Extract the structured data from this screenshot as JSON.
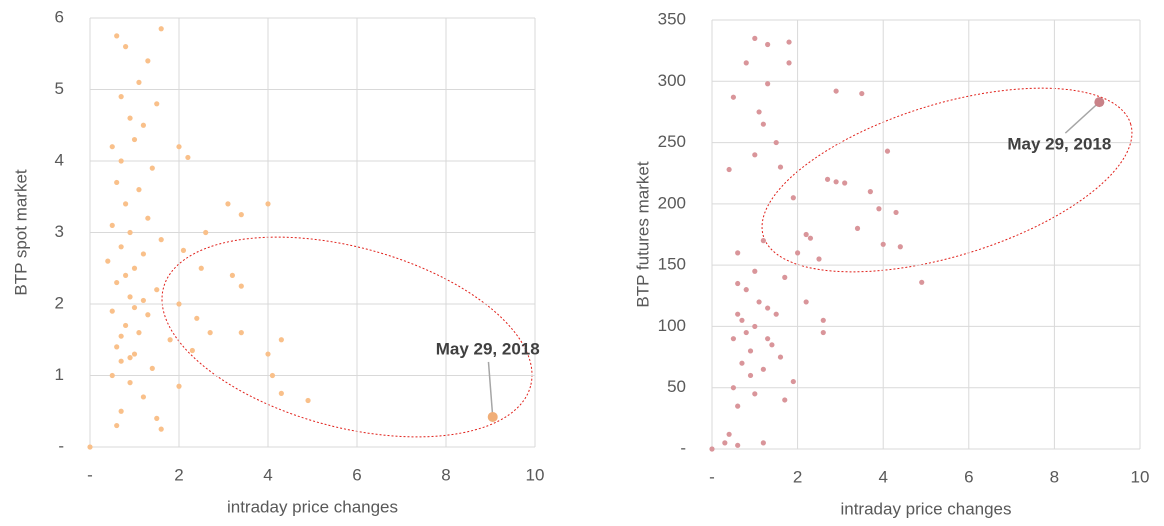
{
  "chart_data": [
    {
      "type": "scatter",
      "xlabel": "intraday price changes",
      "ylabel": "BTP spot market",
      "xlim": [
        0,
        10
      ],
      "xticks": [
        {
          "value": 0,
          "label": "-"
        },
        2,
        4,
        6,
        8,
        10
      ],
      "ylim": [
        0,
        6
      ],
      "yticks": [
        {
          "value": 0,
          "label": "-"
        },
        1,
        2,
        3,
        4,
        5,
        6
      ],
      "grid": true,
      "series": [
        {
          "color": "#f9c08a",
          "x": [
            0.6,
            0.8,
            1.3,
            1.6,
            1.1,
            0.7,
            1.5,
            0.9,
            1.2,
            0.5,
            1.0,
            2.0,
            2.2,
            0.7,
            1.4,
            0.6,
            1.1,
            0.8,
            3.1,
            4.0,
            3.4,
            1.3,
            0.5,
            0.9,
            2.6,
            1.6,
            0.7,
            1.2,
            2.1,
            0.4,
            1.0,
            2.5,
            3.2,
            0.6,
            1.5,
            3.4,
            0.9,
            2.0,
            0.5,
            1.3,
            2.4,
            0.8,
            1.1,
            3.4,
            1.8,
            0.6,
            2.3,
            1.0,
            4.0,
            0.7,
            1.4,
            4.1,
            0.5,
            0.9,
            2.0,
            4.3,
            1.2,
            4.9,
            0.7,
            1.5,
            0.6,
            1.6,
            0.0,
            0.8,
            1.0,
            0.7,
            1.2,
            0.9,
            4.3,
            2.7
          ],
          "values": [
            5.75,
            5.6,
            5.4,
            5.85,
            5.1,
            4.9,
            4.8,
            4.6,
            4.5,
            4.2,
            4.3,
            4.2,
            4.05,
            4.0,
            3.9,
            3.7,
            3.6,
            3.4,
            3.4,
            3.4,
            3.25,
            3.2,
            3.1,
            3.0,
            3.0,
            2.9,
            2.8,
            2.7,
            2.75,
            2.6,
            2.5,
            2.5,
            2.4,
            2.3,
            2.2,
            2.25,
            2.1,
            2.0,
            1.9,
            1.85,
            1.8,
            1.7,
            1.6,
            1.6,
            1.5,
            1.4,
            1.35,
            1.3,
            1.3,
            1.2,
            1.1,
            1.0,
            1.0,
            0.9,
            0.85,
            0.75,
            0.7,
            0.65,
            0.5,
            0.4,
            0.3,
            0.25,
            0.0,
            2.4,
            1.95,
            1.55,
            2.05,
            1.25,
            1.5,
            1.6
          ]
        }
      ],
      "annotation": {
        "text": "May 29, 2018",
        "x": 9.05,
        "y": 0.42,
        "color": "#f0ae78"
      }
    },
    {
      "type": "scatter",
      "xlabel": "intraday price changes",
      "ylabel": "BTP futures market",
      "xlim": [
        0,
        10
      ],
      "xticks": [
        {
          "value": 0,
          "label": "-"
        },
        2,
        4,
        6,
        8,
        10
      ],
      "ylim": [
        0,
        350
      ],
      "yticks": [
        {
          "value": 0,
          "label": "-"
        },
        50,
        100,
        150,
        200,
        250,
        300,
        350
      ],
      "grid": true,
      "series": [
        {
          "color": "#d9959a",
          "x": [
            1.0,
            1.3,
            1.8,
            0.8,
            1.8,
            1.3,
            0.5,
            1.1,
            1.2,
            1.5,
            3.5,
            2.9,
            1.0,
            4.1,
            1.6,
            0.4,
            2.9,
            3.1,
            2.7,
            1.9,
            3.7,
            3.9,
            4.3,
            3.4,
            2.2,
            1.2,
            4.0,
            4.4,
            0.6,
            2.5,
            4.9,
            1.0,
            1.7,
            0.8,
            2.2,
            1.3,
            0.6,
            2.6,
            1.0,
            2.6,
            0.5,
            1.4,
            0.9,
            1.6,
            0.7,
            1.2,
            1.9,
            0.5,
            1.0,
            1.7,
            0.6,
            0.4,
            0.3,
            0.6,
            1.2,
            0.0,
            0.8,
            1.1,
            0.7,
            1.5,
            0.9,
            1.3,
            0.6,
            2.0,
            2.3
          ],
          "values": [
            335,
            330,
            332,
            315,
            315,
            298,
            287,
            275,
            265,
            250,
            290,
            292,
            240,
            243,
            230,
            228,
            218,
            217,
            220,
            205,
            210,
            196,
            193,
            180,
            175,
            170,
            167,
            165,
            160,
            155,
            136,
            145,
            140,
            130,
            120,
            115,
            110,
            105,
            100,
            95,
            90,
            85,
            80,
            75,
            70,
            65,
            55,
            50,
            45,
            40,
            35,
            12,
            5,
            3,
            5,
            0,
            95,
            120,
            105,
            110,
            60,
            90,
            135,
            160,
            172
          ]
        }
      ],
      "annotation": {
        "text": "May 29, 2018",
        "x": 9.05,
        "y": 283,
        "color": "#c98288"
      }
    }
  ]
}
